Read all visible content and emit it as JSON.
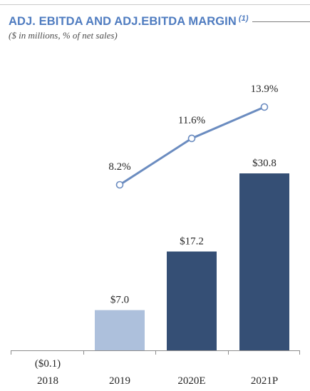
{
  "header": {
    "title": "ADJ. EBITDA AND ADJ.EBITDA MARGIN",
    "footnote_marker": "(1)",
    "subtitle": "($ in millions, % of net sales)",
    "accent_color": "#4f7cc0"
  },
  "chart_data": {
    "type": "bar",
    "categories": [
      "2018",
      "2019",
      "2020E",
      "2021P"
    ],
    "series": [
      {
        "values": [
          -0.1,
          7.0,
          17.2,
          30.8
        ],
        "labels": [
          "($0.1)",
          "$7.0",
          "$17.2",
          "$30.8"
        ],
        "colors": [
          "#adc0dc",
          "#adc0dc",
          "#354f75",
          "#354f75"
        ]
      },
      {
        "type": "line",
        "values": [
          null,
          8.2,
          11.6,
          13.9
        ],
        "labels": [
          "",
          "8.2%",
          "11.6%",
          "13.9%"
        ],
        "color": "#6b8cc0"
      }
    ],
    "title": "ADJ. EBITDA AND ADJ.EBITDA MARGIN",
    "subtitle": "($ in millions, % of net sales)",
    "xlabel": "",
    "ylabel": "",
    "grid": false,
    "legend": "none"
  }
}
